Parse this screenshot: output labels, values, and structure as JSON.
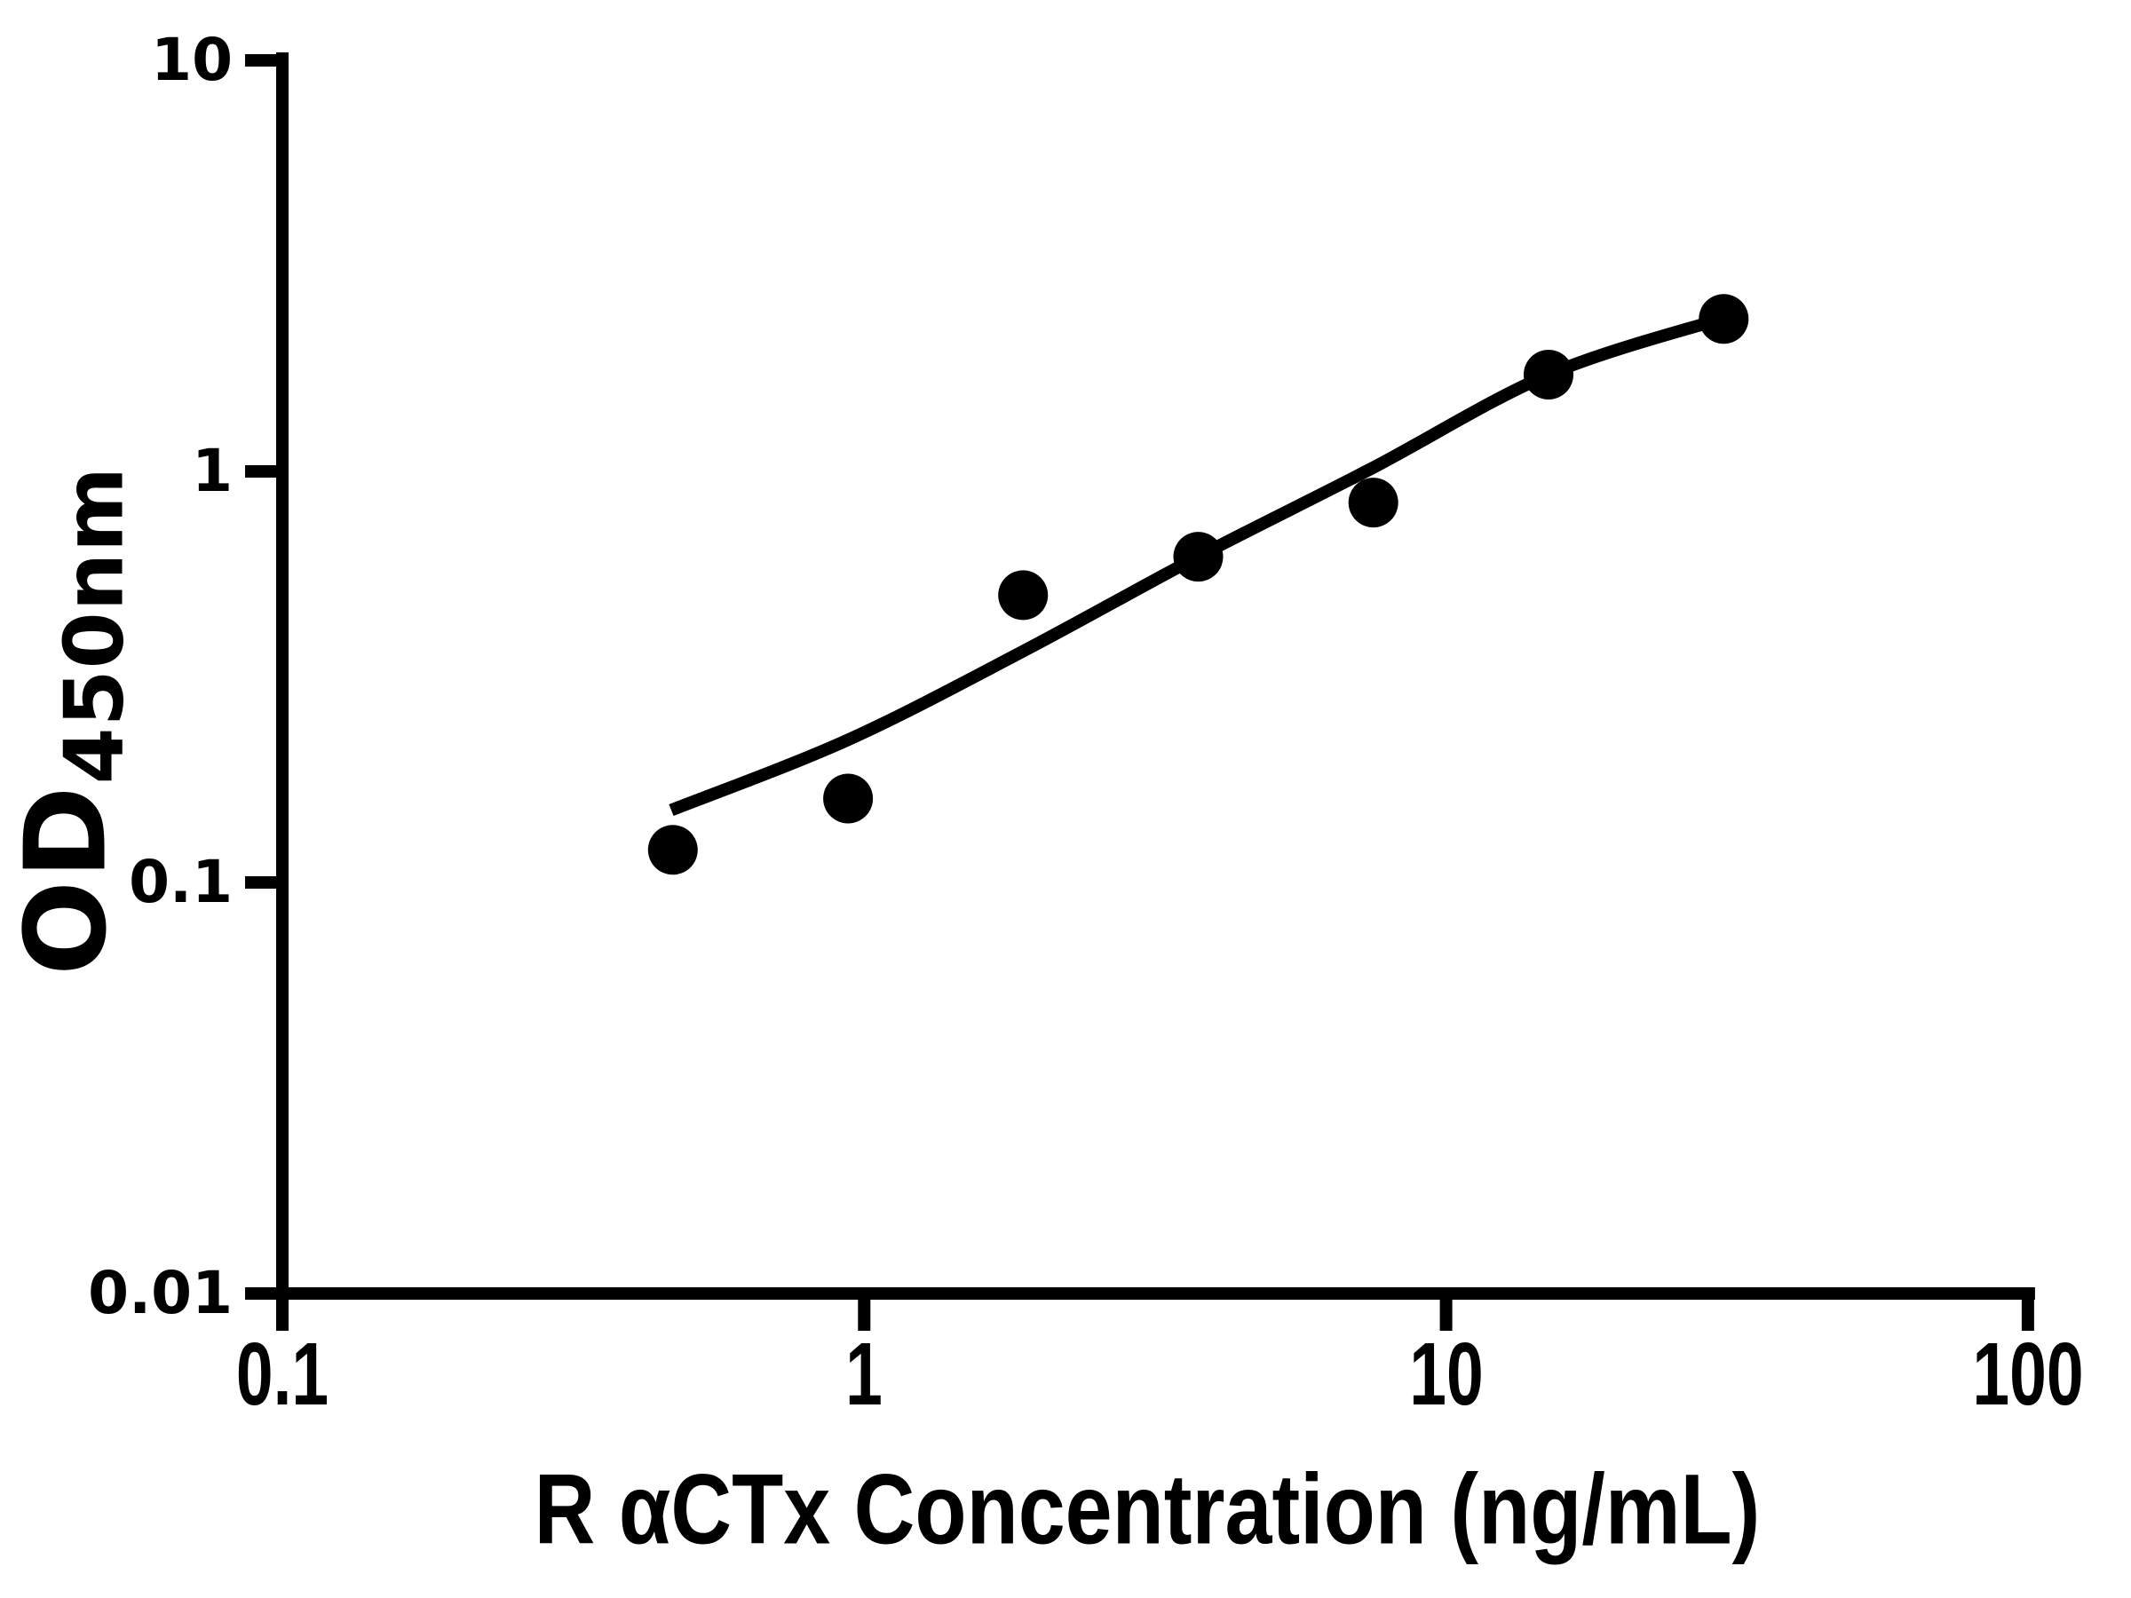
{
  "chart_data": {
    "type": "scatter",
    "title": "",
    "xlabel": "R αCTx Concentration (ng/mL)",
    "ylabel_main": "OD",
    "ylabel_sub": "450nm",
    "x_scale": "log10",
    "y_scale": "log10",
    "xlim": [
      0.1,
      100
    ],
    "ylim": [
      0.01,
      10
    ],
    "x_ticks": [
      "0.1",
      "1",
      "10",
      "100"
    ],
    "y_ticks": [
      "10",
      "1",
      "0.1",
      "0.01"
    ],
    "x_tick_values": [
      0.1,
      1,
      10,
      100
    ],
    "y_tick_values": [
      10,
      1,
      0.1,
      0.01
    ],
    "grid": false,
    "legend": null,
    "colors": {
      "background": "#ffffff",
      "axis": "#000000",
      "marker": "#000000",
      "curve": "#000000"
    },
    "series": [
      {
        "name": "standards",
        "marker": "filled-circle",
        "points": [
          {
            "x": 0.469,
            "y": 0.12
          },
          {
            "x": 0.938,
            "y": 0.16
          },
          {
            "x": 1.875,
            "y": 0.5
          },
          {
            "x": 3.75,
            "y": 0.62
          },
          {
            "x": 7.5,
            "y": 0.84
          },
          {
            "x": 15,
            "y": 1.72
          },
          {
            "x": 30,
            "y": 2.35
          }
        ]
      }
    ],
    "fit_curve": {
      "name": "sigmoidal-fit-curve",
      "points": [
        {
          "x": 0.466,
          "y": 0.15
        },
        {
          "x": 0.936,
          "y": 0.222
        },
        {
          "x": 1.874,
          "y": 0.365
        },
        {
          "x": 3.78,
          "y": 0.624
        },
        {
          "x": 7.48,
          "y": 1.02
        },
        {
          "x": 15.0,
          "y": 1.72
        },
        {
          "x": 30.0,
          "y": 2.36
        }
      ]
    }
  }
}
